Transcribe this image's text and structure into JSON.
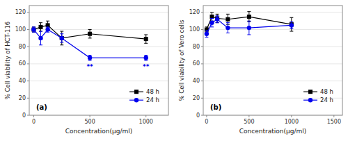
{
  "chart_data": [
    {
      "type": "line",
      "xlabel": "Concentration(μg/ml)",
      "ylabel": "% Cell viability of HCT-116",
      "x": [
        0,
        62.5,
        125,
        250,
        500,
        1000
      ],
      "series": [
        {
          "name": "48 h",
          "color": "#000000",
          "marker": "square",
          "values": [
            100,
            103,
            105,
            90,
            95,
            89
          ],
          "errors": [
            3,
            5,
            5,
            8,
            5,
            5
          ]
        },
        {
          "name": "24 h",
          "color": "#0000EE",
          "marker": "circle",
          "values": [
            100,
            90,
            100,
            90,
            67,
            67
          ],
          "errors": [
            3,
            8,
            3,
            5,
            3,
            3
          ]
        }
      ],
      "annotations": [
        {
          "text": "**",
          "x": 500,
          "y": 61,
          "color": "#0000EE"
        },
        {
          "text": "**",
          "x": 1000,
          "y": 61,
          "color": "#0000EE"
        },
        {
          "text": "(a)"
        }
      ],
      "xlim": [
        -40,
        1200
      ],
      "ylim": [
        0,
        128
      ],
      "xticks": [
        0,
        500,
        1000
      ],
      "yticks": [
        0,
        20,
        40,
        60,
        80,
        100,
        120
      ],
      "legend": "lower right"
    },
    {
      "type": "line",
      "xlabel": "Concentration(μg/ml)",
      "ylabel": "% Cell viability of Vero cells",
      "x": [
        0,
        62.5,
        125,
        250,
        500,
        1000
      ],
      "series": [
        {
          "name": "48 h",
          "color": "#000000",
          "marker": "square",
          "values": [
            100,
            115,
            113,
            112,
            115,
            106
          ],
          "errors": [
            3,
            5,
            5,
            6,
            6,
            8
          ]
        },
        {
          "name": "24 h",
          "color": "#0000EE",
          "marker": "circle",
          "values": [
            95,
            108,
            112,
            102,
            102,
            105
          ],
          "errors": [
            4,
            5,
            4,
            6,
            8,
            4
          ]
        }
      ],
      "annotations": [
        {
          "text": "(b)"
        }
      ],
      "xlim": [
        -40,
        1600
      ],
      "ylim": [
        0,
        128
      ],
      "xticks": [
        0,
        500,
        1000,
        1500
      ],
      "yticks": [
        0,
        20,
        40,
        60,
        80,
        100,
        120
      ],
      "legend": "lower right"
    }
  ]
}
